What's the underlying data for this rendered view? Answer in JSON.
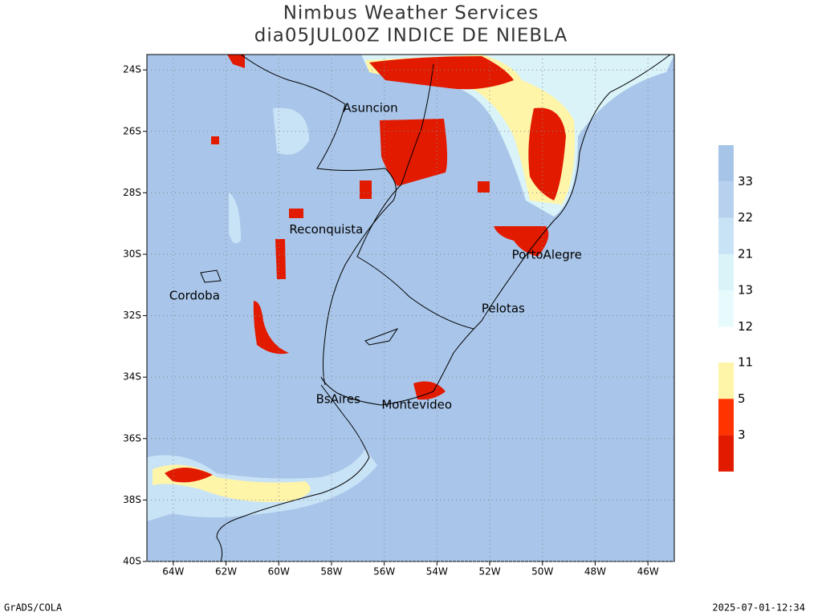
{
  "map": {
    "title": [
      "Nimbus Weather Services",
      "dia05JUL00Z INDICE DE NIEBLA"
    ],
    "lonlim": [
      -65,
      -45
    ],
    "latlim": [
      -40,
      -23.5
    ],
    "xticks": [
      {
        "value": -64,
        "label": "64W"
      },
      {
        "value": -62,
        "label": "62W"
      },
      {
        "value": -60,
        "label": "60W"
      },
      {
        "value": -58,
        "label": "58W"
      },
      {
        "value": -56,
        "label": "56W"
      },
      {
        "value": -54,
        "label": "54W"
      },
      {
        "value": -52,
        "label": "52W"
      },
      {
        "value": -50,
        "label": "50W"
      },
      {
        "value": -48,
        "label": "48W"
      },
      {
        "value": -46,
        "label": "46W"
      }
    ],
    "yticks": [
      {
        "value": -24,
        "label": "24S"
      },
      {
        "value": -26,
        "label": "26S"
      },
      {
        "value": -28,
        "label": "28S"
      },
      {
        "value": -30,
        "label": "30S"
      },
      {
        "value": -32,
        "label": "32S"
      },
      {
        "value": -34,
        "label": "34S"
      },
      {
        "value": -36,
        "label": "36S"
      },
      {
        "value": -38,
        "label": "38S"
      },
      {
        "value": -40,
        "label": "40S"
      }
    ],
    "grid": true,
    "cities": [
      {
        "name": "Asuncion",
        "lon": -57.56,
        "lat": -25.25
      },
      {
        "name": "Reconquista",
        "lon": -59.6,
        "lat": -29.2
      },
      {
        "name": "PortoAlegre",
        "lon": -51.16,
        "lat": -30.03
      },
      {
        "name": "Cordoba",
        "lon": -64.15,
        "lat": -31.36
      },
      {
        "name": "Pelotas",
        "lon": -52.31,
        "lat": -31.78
      },
      {
        "name": "BsAires",
        "lon": -58.59,
        "lat": -34.73
      },
      {
        "name": "Montevideo",
        "lon": -56.1,
        "lat": -34.91
      }
    ],
    "colorbar_upper": {
      "colors": [
        "#a6c4e8",
        "#b6d0ee",
        "#c9e3f6",
        "#d9f3f9",
        "#e8fbfc"
      ],
      "labels": [
        33,
        22,
        21,
        13,
        12
      ]
    },
    "colorbar_lower": {
      "colors": [
        "#fff5a8",
        "#ff3300",
        "#e21a00"
      ],
      "labels": [
        11,
        5,
        3
      ]
    },
    "footer_left": "GrADS/COLA",
    "footer_right": "2025-07-01-12:34"
  }
}
